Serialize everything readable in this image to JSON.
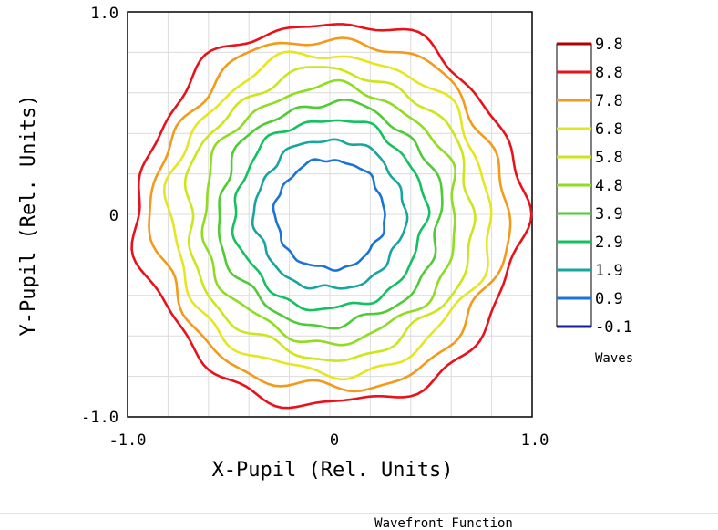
{
  "chart_data": {
    "type": "contour",
    "title": "Wavefront Function",
    "xlabel": "X-Pupil (Rel. Units)",
    "ylabel": "Y-Pupil (Rel. Units)",
    "xlim": [
      -1.0,
      1.0
    ],
    "ylim": [
      -1.0,
      1.0
    ],
    "x_tick_labels": [
      "-1.0",
      "0",
      "1.0"
    ],
    "y_tick_labels": [
      "1.0",
      "0",
      "-1.0"
    ],
    "grid": true,
    "legend_placement": "right",
    "legend_units": "Waves",
    "levels": [
      {
        "label": "9.8",
        "value": 9.8,
        "color": "#b00000",
        "radius": null
      },
      {
        "label": "8.8",
        "value": 8.8,
        "color": "#e8121a",
        "radius": 0.95
      },
      {
        "label": "7.8",
        "value": 7.8,
        "color": "#f39a1a",
        "radius": 0.87
      },
      {
        "label": "6.8",
        "value": 6.8,
        "color": "#e6e620",
        "radius": 0.79
      },
      {
        "label": "5.8",
        "value": 5.8,
        "color": "#cce61a",
        "radius": 0.71
      },
      {
        "label": "4.8",
        "value": 4.8,
        "color": "#8fdc20",
        "radius": 0.63
      },
      {
        "label": "3.9",
        "value": 3.9,
        "color": "#4fcc34",
        "radius": 0.55
      },
      {
        "label": "2.9",
        "value": 2.9,
        "color": "#14c060",
        "radius": 0.47
      },
      {
        "label": "1.9",
        "value": 1.9,
        "color": "#18a5a0",
        "radius": 0.37
      },
      {
        "label": "0.9",
        "value": 0.9,
        "color": "#1a73d6",
        "radius": 0.27
      },
      {
        "label": "-0.1",
        "value": -0.1,
        "color": "#141c9c",
        "radius": null
      }
    ]
  }
}
